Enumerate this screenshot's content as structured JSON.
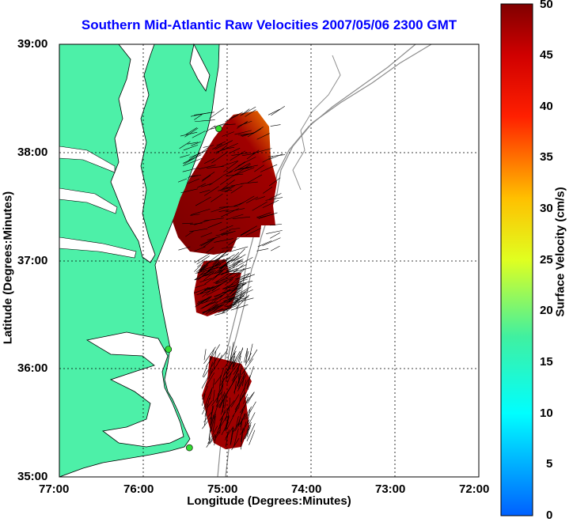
{
  "title": "Southern Mid-Atlantic Raw Velocities 2007/05/06 2300 GMT",
  "xlabel": "Longitude (Degrees:Minutes)",
  "ylabel": "Latitude (Degrees:Minutes)",
  "colorbar_label": "Surface Velocity (cm/s)",
  "x_ticks": [
    "77:00",
    "76:00",
    "75:00",
    "74:00",
    "73:00",
    "72:00"
  ],
  "y_ticks": [
    "39:00",
    "38:00",
    "37:00",
    "36:00",
    "35:00"
  ],
  "colorbar_ticks": [
    "50",
    "45",
    "40",
    "35",
    "30",
    "25",
    "20",
    "15",
    "10",
    "5",
    "0"
  ],
  "colors": {
    "land": "#4df0a8",
    "title": "#0000ff",
    "coastline": "#000000",
    "bathymetry": "#8c8c8c",
    "station": "#33dd33"
  },
  "map_extent": {
    "lon": [
      -77,
      -72
    ],
    "lat": [
      35,
      39
    ]
  },
  "colorbar_range": [
    0,
    50
  ],
  "stations": [
    {
      "lon": -75.1,
      "lat": 38.22
    },
    {
      "lon": -75.7,
      "lat": 36.18
    },
    {
      "lon": -75.45,
      "lat": 35.27
    }
  ]
}
